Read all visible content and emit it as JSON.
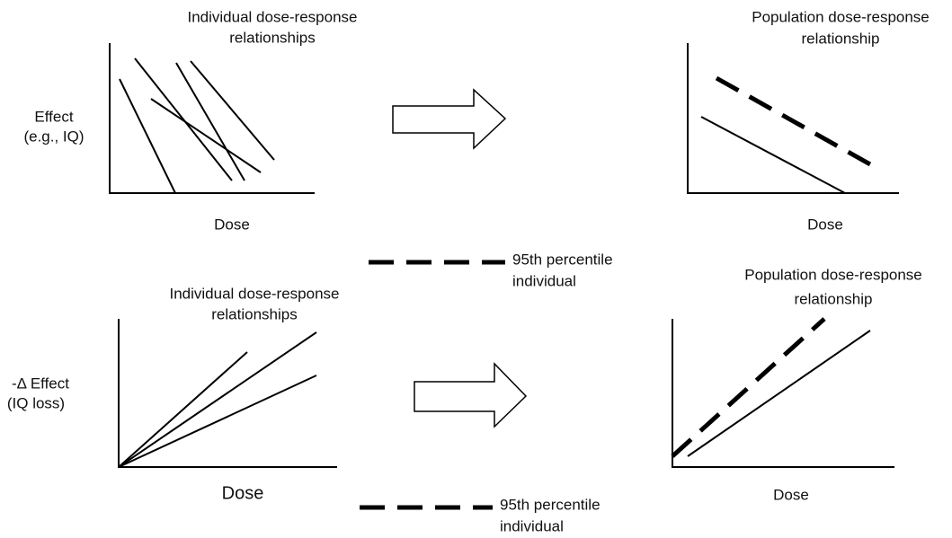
{
  "top": {
    "individual": {
      "title": [
        "Individual dose-response",
        "relationships"
      ],
      "y_label": [
        "Effect",
        "(e.g., IQ)"
      ],
      "x_label": "Dose"
    },
    "population": {
      "title": [
        "Population dose-response",
        "relationship"
      ],
      "x_label": "Dose"
    },
    "legend": [
      "95th percentile",
      "individual"
    ]
  },
  "bottom": {
    "individual": {
      "title": [
        "Individual dose-response",
        "relationships"
      ],
      "y_label": [
        "-Δ Effect",
        "(IQ loss)"
      ],
      "x_label": "Dose"
    },
    "population": {
      "title": [
        "Population dose-response",
        "relationship"
      ],
      "x_label": "Dose"
    },
    "legend": [
      "95th percentile",
      "individual"
    ]
  }
}
